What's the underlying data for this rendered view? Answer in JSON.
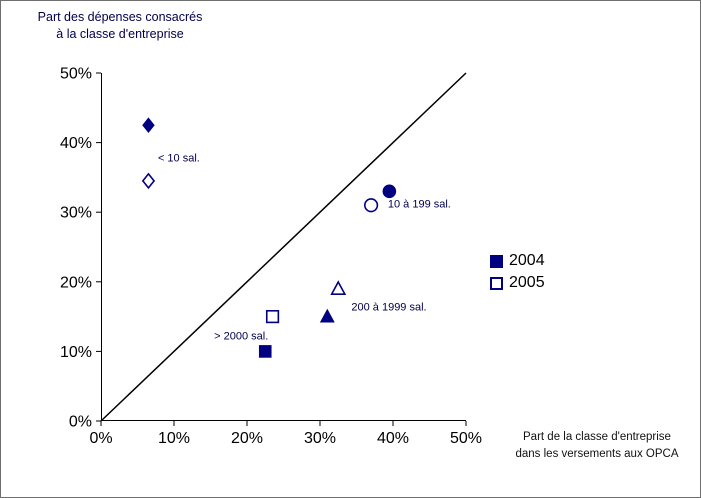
{
  "header": {
    "title_line1": "Part des dépenses consacrés",
    "title_line2": "à la classe d'entreprise"
  },
  "footer": {
    "xlabel_line1": "Part de la classe d'entreprise",
    "xlabel_line2": "dans les versements aux OPCA"
  },
  "legend": {
    "items": [
      {
        "label": "2004",
        "style": "filled"
      },
      {
        "label": "2005",
        "style": "open"
      }
    ]
  },
  "chart_data": {
    "type": "scatter",
    "title": "Part des dépenses consacrés à la classe d'entreprise",
    "xlabel": "Part de la classe d'entreprise dans les versements aux OPCA",
    "ylabel": "Part des dépenses consacrés à la classe d'entreprise",
    "xlim": [
      0,
      50
    ],
    "ylim": [
      0,
      50
    ],
    "x_ticks": {
      "values": [
        0,
        10,
        20,
        30,
        40,
        50
      ],
      "labels": [
        "0%",
        "10%",
        "20%",
        "30%",
        "40%",
        "50%"
      ]
    },
    "y_ticks": {
      "values": [
        0,
        10,
        20,
        30,
        40,
        50
      ],
      "labels": [
        "0%",
        "10%",
        "20%",
        "30%",
        "40%",
        "50%"
      ]
    },
    "grid": false,
    "legend_position": "right",
    "marker_color": "#000080",
    "annotation_color": "#00004d",
    "axis_color": "#000000",
    "reference_line": {
      "from": [
        0,
        0
      ],
      "to": [
        50,
        50
      ]
    },
    "categories": [
      {
        "name": "< 10 sal.",
        "marker": "diamond"
      },
      {
        "name": "10 à 199 sal.",
        "marker": "circle"
      },
      {
        "name": "200 à 1999 sal.",
        "marker": "triangle"
      },
      {
        "name": "> 2000 sal.",
        "marker": "square"
      }
    ],
    "series": [
      {
        "name": "2004",
        "style": "filled",
        "points": [
          {
            "category": "< 10 sal.",
            "x": 6.5,
            "y": 42.5
          },
          {
            "category": "10 à 199 sal.",
            "x": 39.5,
            "y": 33
          },
          {
            "category": "200 à 1999 sal.",
            "x": 31,
            "y": 15
          },
          {
            "category": "> 2000 sal.",
            "x": 22.5,
            "y": 10
          }
        ]
      },
      {
        "name": "2005",
        "style": "open",
        "points": [
          {
            "category": "< 10 sal.",
            "x": 6.5,
            "y": 34.5
          },
          {
            "category": "10 à 199 sal.",
            "x": 37,
            "y": 31
          },
          {
            "category": "200 à 1999 sal.",
            "x": 32.5,
            "y": 19
          },
          {
            "category": "> 2000 sal.",
            "x": 23.5,
            "y": 15
          }
        ]
      }
    ],
    "annotations": [
      {
        "text": "< 10 sal.",
        "x": 7.8,
        "y": 37.3
      },
      {
        "text": "10 à 199 sal.",
        "x": 39.3,
        "y": 30.7
      },
      {
        "text": "200 à 1999 sal.",
        "x": 34.3,
        "y": 15.9
      },
      {
        "text": "> 2000 sal.",
        "x": 15.5,
        "y": 11.7
      }
    ]
  }
}
